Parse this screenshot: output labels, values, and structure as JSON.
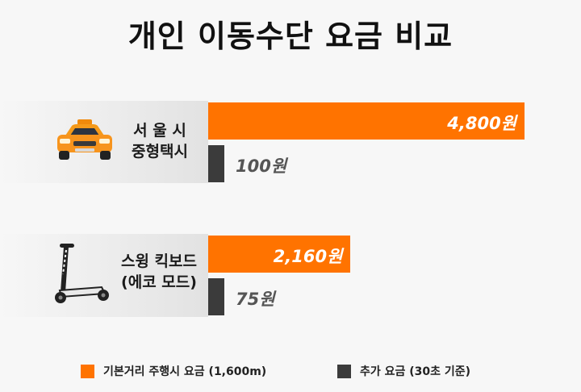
{
  "title": "개인 이동수단 요금 비교",
  "colors": {
    "base": "#ff7300",
    "extra": "#3b3b3b",
    "label_on_bar": "#ffffff",
    "label_off_bar": "#555555"
  },
  "chart_data": {
    "type": "bar",
    "orientation": "horizontal",
    "title": "개인 이동수단 요금 비교",
    "categories": [
      {
        "lines": [
          "서 울 시",
          "중형택시"
        ],
        "icon": "taxi-icon"
      },
      {
        "lines": [
          "스윙 킥보드",
          "(에코 모드)"
        ],
        "icon": "kickboard-icon"
      }
    ],
    "series": [
      {
        "name": "기본거리 주행시 요금 (1,600m)",
        "values": [
          4800,
          2160
        ],
        "labels": [
          "4,800원",
          "2,160원"
        ],
        "color": "#ff7300"
      },
      {
        "name": "추가 요금 (30초 기준)",
        "values": [
          100,
          75
        ],
        "labels": [
          "100원",
          "75원"
        ],
        "color": "#3b3b3b"
      }
    ],
    "legend_position": "bottom",
    "grid": false
  },
  "legend": [
    {
      "label": "기본거리 주행시 요금 (1,600m)",
      "color": "#ff7300"
    },
    {
      "label": "추가 요금 (30초 기준)",
      "color": "#3b3b3b"
    }
  ]
}
